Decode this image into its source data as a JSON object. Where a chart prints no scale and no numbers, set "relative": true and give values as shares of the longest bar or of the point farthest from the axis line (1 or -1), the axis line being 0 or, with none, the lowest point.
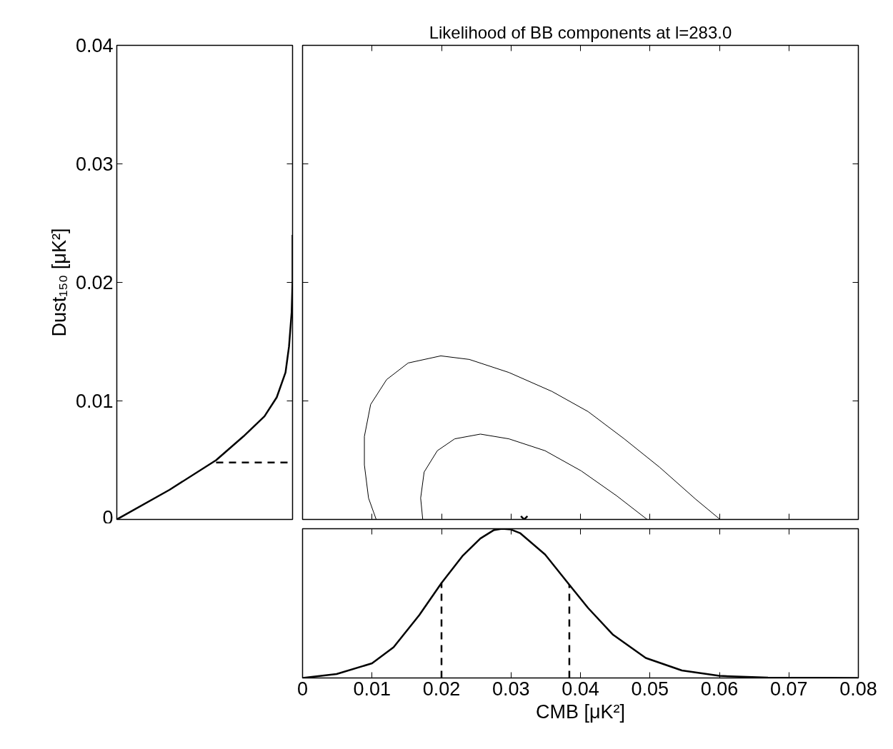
{
  "chart_data": [
    {
      "type": "line",
      "orientation": "horizontal",
      "relative": true,
      "ylabel": "Dust₁₅₀ [μK²]",
      "ylim": [
        0,
        0.04
      ],
      "yticks": [
        0,
        0.01,
        0.02,
        0.03,
        0.04
      ],
      "tick_labels": "y",
      "grid": false,
      "series": [
        {
          "color": "#000000",
          "x": [
            0,
            0.0025,
            0.005,
            0.007,
            0.0087,
            0.0103,
            0.0124,
            0.0146,
            0.0175,
            0.0201,
            0.024
          ],
          "values": [
            0,
            0.3,
            0.565,
            0.72,
            0.84,
            0.91,
            0.96,
            0.98,
            0.995,
            1.0,
            1.0
          ]
        },
        {
          "color": "#000000",
          "line_style": "dashed",
          "x": [
            0.0048,
            0.0048
          ],
          "values": [
            0.565,
            1
          ]
        }
      ]
    },
    {
      "type": "line",
      "title": "Likelihood of BB components at l=283.0",
      "xlim": [
        0,
        0.08
      ],
      "ylim": [
        0,
        0.04
      ],
      "xticks": [
        0,
        0.01,
        0.02,
        0.03,
        0.04,
        0.05,
        0.06,
        0.07,
        0.08
      ],
      "yticks": [
        0,
        0.01,
        0.02,
        0.03,
        0.04
      ],
      "tick_labels": false,
      "grid": false,
      "series": [
        {
          "color": "#000000",
          "x": [
            0.0106,
            0.0095,
            0.0089,
            0.0089,
            0.0098,
            0.0121,
            0.0152,
            0.0199,
            0.024,
            0.0297,
            0.0359,
            0.0411,
            0.0463,
            0.0514,
            0.0566,
            0.0601
          ],
          "values": [
            0,
            0.0018,
            0.0046,
            0.007,
            0.0097,
            0.0118,
            0.0132,
            0.0138,
            0.0135,
            0.0124,
            0.0108,
            0.0091,
            0.0068,
            0.0044,
            0.0017,
            0
          ]
        },
        {
          "color": "#000000",
          "x": [
            0.0173,
            0.017,
            0.0175,
            0.0194,
            0.0219,
            0.0256,
            0.0297,
            0.0349,
            0.0401,
            0.0452,
            0.0496
          ],
          "values": [
            0,
            0.0018,
            0.004,
            0.0058,
            0.0068,
            0.0072,
            0.0068,
            0.0058,
            0.0041,
            0.002,
            0
          ]
        },
        {
          "type": "scatter",
          "marker": "cross",
          "color": "#000000",
          "x": [
            0.0319
          ],
          "values": [
            0
          ]
        }
      ]
    },
    {
      "type": "line",
      "relative": true,
      "xlabel": "CMB [μK²]",
      "xlim": [
        0,
        0.08
      ],
      "xticks": [
        0,
        0.01,
        0.02,
        0.03,
        0.04,
        0.05,
        0.06,
        0.07,
        0.08
      ],
      "tick_labels": "x",
      "grid": false,
      "series": [
        {
          "color": "#000000",
          "x": [
            0,
            0.0049,
            0.01,
            0.0131,
            0.0168,
            0.02,
            0.023,
            0.0256,
            0.0275,
            0.0287,
            0.03,
            0.0313,
            0.0349,
            0.0384,
            0.0411,
            0.0447,
            0.0494,
            0.0546,
            0.06,
            0.067,
            0.0799
          ],
          "values": [
            0,
            0.026,
            0.098,
            0.206,
            0.421,
            0.636,
            0.816,
            0.935,
            0.99,
            1.0,
            0.995,
            0.971,
            0.828,
            0.624,
            0.469,
            0.289,
            0.134,
            0.05,
            0.014,
            0.002,
            0
          ]
        },
        {
          "color": "#000000",
          "line_style": "dashed",
          "x": [
            0.02,
            0.02
          ],
          "values": [
            0,
            0.636
          ]
        },
        {
          "color": "#000000",
          "line_style": "dashed",
          "x": [
            0.0384,
            0.0384
          ],
          "values": [
            0,
            0.624
          ]
        }
      ]
    }
  ]
}
